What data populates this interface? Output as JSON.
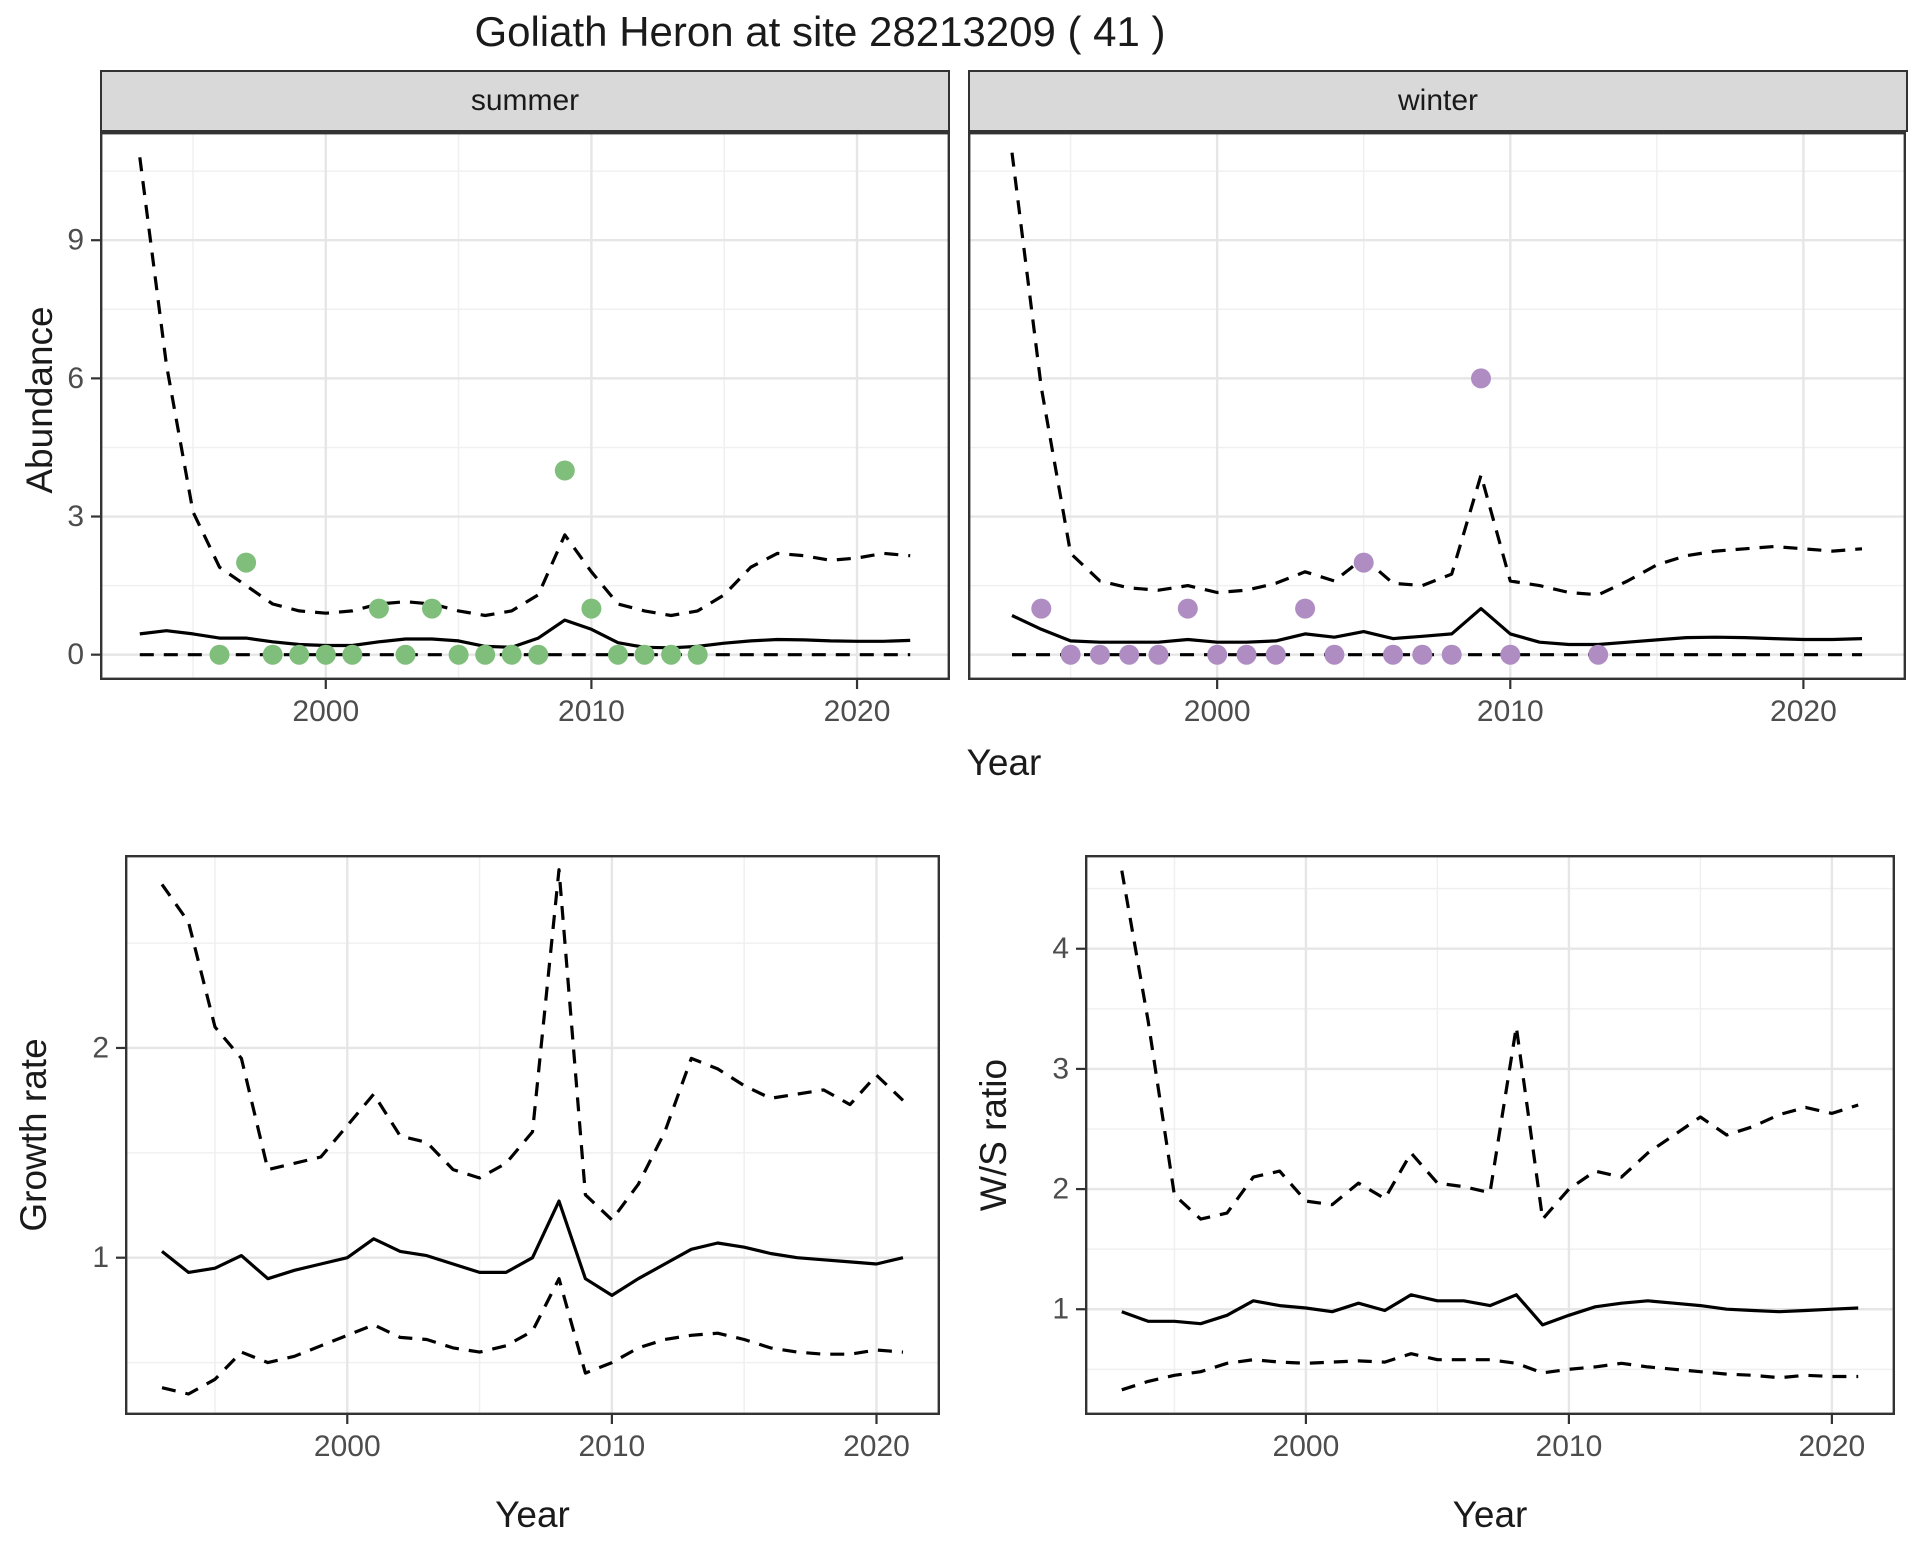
{
  "title": "Goliath Heron at site 28213209 ( 41 )",
  "axes": {
    "x_label": "Year",
    "abundance_label": "Abundance",
    "growth_label": "Growth rate",
    "ws_label": "W/S ratio"
  },
  "colors": {
    "summer_point": "#7FBF7B",
    "winter_point": "#AF8DC3",
    "line": "#000000",
    "strip_bg": "#d9d9d9",
    "grid_major": "#e6e6e6",
    "grid_minor": "#f0f0f0",
    "panel_border": "#333333",
    "tick_label": "#4d4d4d"
  },
  "chart_data": [
    {
      "id": "abundance_summer",
      "type": "line",
      "facet_label": "summer",
      "title": "Abundance - summer facet",
      "xlabel": "Year",
      "ylabel": "Abundance",
      "xlim": [
        1991.5,
        2023.5
      ],
      "ylim": [
        -0.55,
        11.35
      ],
      "xticks": [
        2000,
        2010,
        2020
      ],
      "xminor": [
        1995,
        2005,
        2015
      ],
      "yticks": [
        0,
        3,
        6,
        9
      ],
      "yminor": [
        1.5,
        4.5,
        7.5,
        10.5
      ],
      "show_y_tick_labels": true,
      "legend": "none",
      "grid": true,
      "series": [
        {
          "name": "upper_ci",
          "style": "dashed",
          "x": [
            1993,
            1994,
            1995,
            1996,
            1997,
            1998,
            1999,
            2000,
            2001,
            2002,
            2003,
            2004,
            2005,
            2006,
            2007,
            2008,
            2009,
            2010,
            2011,
            2012,
            2013,
            2014,
            2015,
            2016,
            2017,
            2018,
            2019,
            2020,
            2021,
            2022
          ],
          "y": [
            10.8,
            6.3,
            3.1,
            1.9,
            1.5,
            1.1,
            0.95,
            0.9,
            0.95,
            1.1,
            1.15,
            1.1,
            0.95,
            0.85,
            0.95,
            1.3,
            2.6,
            1.8,
            1.1,
            0.95,
            0.85,
            0.95,
            1.3,
            1.9,
            2.2,
            2.15,
            2.05,
            2.1,
            2.2,
            2.15
          ]
        },
        {
          "name": "median",
          "style": "solid",
          "x": [
            1993,
            1994,
            1995,
            1996,
            1997,
            1998,
            1999,
            2000,
            2001,
            2002,
            2003,
            2004,
            2005,
            2006,
            2007,
            2008,
            2009,
            2010,
            2011,
            2012,
            2013,
            2014,
            2015,
            2016,
            2017,
            2018,
            2019,
            2020,
            2021,
            2022
          ],
          "y": [
            0.45,
            0.52,
            0.45,
            0.36,
            0.36,
            0.28,
            0.22,
            0.2,
            0.2,
            0.28,
            0.34,
            0.34,
            0.3,
            0.18,
            0.16,
            0.36,
            0.75,
            0.55,
            0.26,
            0.16,
            0.15,
            0.18,
            0.25,
            0.3,
            0.33,
            0.32,
            0.3,
            0.29,
            0.29,
            0.31
          ]
        },
        {
          "name": "lower_ci",
          "style": "dashed",
          "x": [
            1993,
            2022
          ],
          "y": [
            0,
            0
          ]
        }
      ],
      "points": {
        "name": "observed_counts_summer",
        "color": "#7FBF7B",
        "x": [
          1996,
          1997,
          1998,
          1999,
          2000,
          2001,
          2002,
          2003,
          2004,
          2005,
          2006,
          2007,
          2008,
          2009,
          2010,
          2011,
          2012,
          2013,
          2014
        ],
        "y": [
          0,
          2,
          0,
          0,
          0,
          0,
          1,
          0,
          1,
          0,
          0,
          0,
          0,
          4,
          1,
          0,
          0,
          0,
          0
        ]
      }
    },
    {
      "id": "abundance_winter",
      "type": "line",
      "facet_label": "winter",
      "title": "Abundance - winter facet",
      "xlabel": "Year",
      "ylabel": "Abundance",
      "xlim": [
        1991.5,
        2023.5
      ],
      "ylim": [
        -0.55,
        11.35
      ],
      "xticks": [
        2000,
        2010,
        2020
      ],
      "xminor": [
        1995,
        2005,
        2015
      ],
      "yticks": [
        0,
        3,
        6,
        9
      ],
      "yminor": [
        1.5,
        4.5,
        7.5,
        10.5
      ],
      "show_y_tick_labels": false,
      "legend": "none",
      "grid": true,
      "series": [
        {
          "name": "upper_ci",
          "style": "dashed",
          "x": [
            1993,
            1994,
            1995,
            1996,
            1997,
            1998,
            1999,
            2000,
            2001,
            2002,
            2003,
            2004,
            2005,
            2006,
            2007,
            2008,
            2009,
            2010,
            2011,
            2012,
            2013,
            2014,
            2015,
            2016,
            2017,
            2018,
            2019,
            2020,
            2021,
            2022
          ],
          "y": [
            10.9,
            5.8,
            2.2,
            1.6,
            1.45,
            1.4,
            1.5,
            1.35,
            1.4,
            1.55,
            1.8,
            1.6,
            2.1,
            1.55,
            1.5,
            1.75,
            3.9,
            1.6,
            1.5,
            1.35,
            1.3,
            1.6,
            1.95,
            2.15,
            2.25,
            2.3,
            2.35,
            2.3,
            2.25,
            2.3
          ]
        },
        {
          "name": "median",
          "style": "solid",
          "x": [
            1993,
            1994,
            1995,
            1996,
            1997,
            1998,
            1999,
            2000,
            2001,
            2002,
            2003,
            2004,
            2005,
            2006,
            2007,
            2008,
            2009,
            2010,
            2011,
            2012,
            2013,
            2014,
            2015,
            2016,
            2017,
            2018,
            2019,
            2020,
            2021,
            2022
          ],
          "y": [
            0.85,
            0.55,
            0.3,
            0.27,
            0.27,
            0.27,
            0.33,
            0.27,
            0.27,
            0.3,
            0.45,
            0.38,
            0.5,
            0.35,
            0.4,
            0.45,
            1.0,
            0.45,
            0.27,
            0.22,
            0.22,
            0.27,
            0.32,
            0.37,
            0.38,
            0.37,
            0.35,
            0.33,
            0.33,
            0.35
          ]
        },
        {
          "name": "lower_ci",
          "style": "dashed",
          "x": [
            1993,
            2022
          ],
          "y": [
            0,
            0
          ]
        }
      ],
      "points": {
        "name": "observed_counts_winter",
        "color": "#AF8DC3",
        "x": [
          1994,
          1995,
          1996,
          1997,
          1998,
          1999,
          2000,
          2001,
          2002,
          2003,
          2004,
          2005,
          2006,
          2007,
          2008,
          2009,
          2010,
          2013
        ],
        "y": [
          1,
          0,
          0,
          0,
          0,
          1,
          0,
          0,
          0,
          1,
          0,
          2,
          0,
          0,
          0,
          6,
          0,
          0
        ]
      }
    },
    {
      "id": "growth_rate",
      "type": "line",
      "facet_label": "",
      "title": "Growth rate",
      "xlabel": "Year",
      "ylabel": "Growth rate",
      "xlim": [
        1991.6,
        2022.4
      ],
      "ylim": [
        0.25,
        2.92
      ],
      "xticks": [
        2000,
        2010,
        2020
      ],
      "xminor": [
        1995,
        2005,
        2015
      ],
      "yticks": [
        1,
        2
      ],
      "yminor": [
        0.5,
        1.5,
        2.5
      ],
      "show_y_tick_labels": true,
      "legend": "none",
      "grid": true,
      "series": [
        {
          "name": "upper_ci",
          "style": "dashed",
          "x": [
            1993,
            1994,
            1995,
            1996,
            1997,
            1998,
            1999,
            2000,
            2001,
            2002,
            2003,
            2004,
            2005,
            2006,
            2007,
            2008,
            2009,
            2010,
            2011,
            2012,
            2013,
            2014,
            2015,
            2016,
            2017,
            2018,
            2019,
            2020,
            2021
          ],
          "y": [
            2.78,
            2.6,
            2.1,
            1.95,
            1.42,
            1.45,
            1.48,
            1.63,
            1.78,
            1.58,
            1.55,
            1.42,
            1.38,
            1.45,
            1.6,
            2.85,
            1.3,
            1.18,
            1.35,
            1.6,
            1.95,
            1.9,
            1.82,
            1.76,
            1.78,
            1.8,
            1.73,
            1.87,
            1.75
          ]
        },
        {
          "name": "median",
          "style": "solid",
          "x": [
            1993,
            1994,
            1995,
            1996,
            1997,
            1998,
            1999,
            2000,
            2001,
            2002,
            2003,
            2004,
            2005,
            2006,
            2007,
            2008,
            2009,
            2010,
            2011,
            2012,
            2013,
            2014,
            2015,
            2016,
            2017,
            2018,
            2019,
            2020,
            2021
          ],
          "y": [
            1.03,
            0.93,
            0.95,
            1.01,
            0.9,
            0.94,
            0.97,
            1.0,
            1.09,
            1.03,
            1.01,
            0.97,
            0.93,
            0.93,
            1.0,
            1.27,
            0.9,
            0.82,
            0.9,
            0.97,
            1.04,
            1.07,
            1.05,
            1.02,
            1.0,
            0.99,
            0.98,
            0.97,
            1.0
          ]
        },
        {
          "name": "lower_ci",
          "style": "dashed",
          "x": [
            1993,
            1994,
            1995,
            1996,
            1997,
            1998,
            1999,
            2000,
            2001,
            2002,
            2003,
            2004,
            2005,
            2006,
            2007,
            2008,
            2009,
            2010,
            2011,
            2012,
            2013,
            2014,
            2015,
            2016,
            2017,
            2018,
            2019,
            2020,
            2021
          ],
          "y": [
            0.38,
            0.35,
            0.42,
            0.55,
            0.5,
            0.53,
            0.58,
            0.63,
            0.68,
            0.62,
            0.61,
            0.57,
            0.55,
            0.58,
            0.65,
            0.9,
            0.45,
            0.5,
            0.57,
            0.61,
            0.63,
            0.64,
            0.61,
            0.57,
            0.55,
            0.54,
            0.54,
            0.56,
            0.55
          ]
        }
      ],
      "points": null
    },
    {
      "id": "ws_ratio",
      "type": "line",
      "facet_label": "",
      "title": "W/S ratio",
      "xlabel": "Year",
      "ylabel": "W/S ratio",
      "xlim": [
        1991.6,
        2022.4
      ],
      "ylim": [
        0.12,
        4.78
      ],
      "xticks": [
        2000,
        2010,
        2020
      ],
      "xminor": [
        1995,
        2005,
        2015
      ],
      "yticks": [
        1,
        2,
        3,
        4
      ],
      "yminor": [
        0.5,
        1.5,
        2.5,
        3.5,
        4.5
      ],
      "show_y_tick_labels": true,
      "legend": "none",
      "grid": true,
      "series": [
        {
          "name": "upper_ci",
          "style": "dashed",
          "x": [
            1993,
            1994,
            1995,
            1996,
            1997,
            1998,
            1999,
            2000,
            2001,
            2002,
            2003,
            2004,
            2005,
            2006,
            2007,
            2008,
            2009,
            2010,
            2011,
            2012,
            2013,
            2014,
            2015,
            2016,
            2017,
            2018,
            2019,
            2020,
            2021
          ],
          "y": [
            4.65,
            3.4,
            1.95,
            1.75,
            1.8,
            2.1,
            2.15,
            1.9,
            1.87,
            2.05,
            1.92,
            2.3,
            2.05,
            2.02,
            1.97,
            3.35,
            1.75,
            2.0,
            2.15,
            2.1,
            2.3,
            2.45,
            2.6,
            2.45,
            2.52,
            2.62,
            2.68,
            2.63,
            2.7
          ]
        },
        {
          "name": "median",
          "style": "solid",
          "x": [
            1993,
            1994,
            1995,
            1996,
            1997,
            1998,
            1999,
            2000,
            2001,
            2002,
            2003,
            2004,
            2005,
            2006,
            2007,
            2008,
            2009,
            2010,
            2011,
            2012,
            2013,
            2014,
            2015,
            2016,
            2017,
            2018,
            2019,
            2020,
            2021
          ],
          "y": [
            0.98,
            0.9,
            0.9,
            0.88,
            0.95,
            1.07,
            1.03,
            1.01,
            0.98,
            1.05,
            0.99,
            1.12,
            1.07,
            1.07,
            1.03,
            1.12,
            0.87,
            0.95,
            1.02,
            1.05,
            1.07,
            1.05,
            1.03,
            1.0,
            0.99,
            0.98,
            0.99,
            1.0,
            1.01
          ]
        },
        {
          "name": "lower_ci",
          "style": "dashed",
          "x": [
            1993,
            1994,
            1995,
            1996,
            1997,
            1998,
            1999,
            2000,
            2001,
            2002,
            2003,
            2004,
            2005,
            2006,
            2007,
            2008,
            2009,
            2010,
            2011,
            2012,
            2013,
            2014,
            2015,
            2016,
            2017,
            2018,
            2019,
            2020,
            2021
          ],
          "y": [
            0.33,
            0.4,
            0.45,
            0.48,
            0.55,
            0.58,
            0.56,
            0.55,
            0.56,
            0.57,
            0.56,
            0.63,
            0.58,
            0.58,
            0.58,
            0.55,
            0.47,
            0.5,
            0.52,
            0.55,
            0.52,
            0.5,
            0.48,
            0.46,
            0.45,
            0.43,
            0.45,
            0.44,
            0.44
          ]
        }
      ],
      "points": null
    }
  ]
}
